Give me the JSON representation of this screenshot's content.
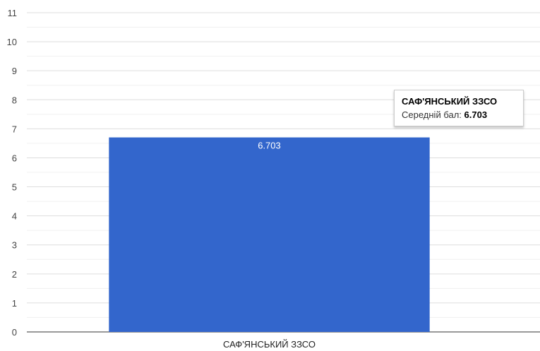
{
  "chart_data": {
    "type": "bar",
    "categories": [
      "САФ'ЯНСЬКИЙ ЗЗСО"
    ],
    "values": [
      6.703
    ],
    "data_labels": [
      "6.703"
    ],
    "title": "",
    "xlabel": "",
    "ylabel": "",
    "ylim": [
      0,
      11
    ],
    "yticks": [
      0,
      1,
      2,
      3,
      4,
      5,
      6,
      7,
      8,
      9,
      10,
      11
    ],
    "grid": true,
    "legend": "none",
    "bar_color": "#3366cc"
  },
  "tooltip": {
    "title": "САФ'ЯНСЬКИЙ ЗЗСО",
    "label": "Середній бал:",
    "value": "6.703"
  }
}
